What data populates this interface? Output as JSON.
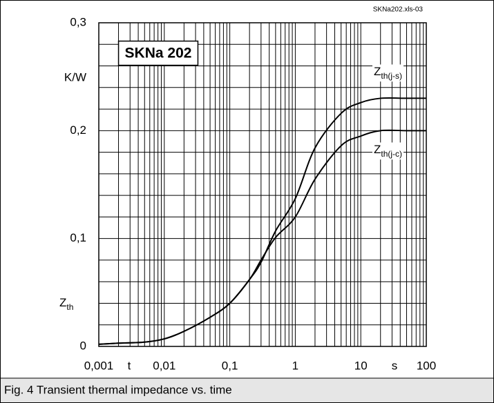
{
  "chart_data": {
    "type": "line",
    "title": "SKNa 202",
    "file_label": "SKNa202.xls-03",
    "caption": "Fig. 4 Transient thermal impedance vs. time",
    "x_label": "t",
    "x_unit": "s",
    "y_label": {
      "symbol": "Z",
      "subscript": "th"
    },
    "y_unit": "K/W",
    "x_log": true,
    "grid": true,
    "x": [
      0.001,
      0.002,
      0.005,
      0.01,
      0.02,
      0.05,
      0.1,
      0.2,
      0.3,
      0.5,
      1,
      2,
      5,
      10,
      20,
      50,
      100
    ],
    "series": [
      {
        "name": {
          "symbol": "Z",
          "subscript": "th(j-s)"
        },
        "color": "#000000",
        "values": [
          0.002,
          0.003,
          0.004,
          0.007,
          0.014,
          0.027,
          0.04,
          0.062,
          0.078,
          0.107,
          0.137,
          0.184,
          0.216,
          0.226,
          0.23,
          0.23,
          0.23
        ]
      },
      {
        "name": {
          "symbol": "Z",
          "subscript": "th(j-c)"
        },
        "color": "#000000",
        "values": [
          0.002,
          0.003,
          0.004,
          0.007,
          0.014,
          0.027,
          0.04,
          0.062,
          0.08,
          0.101,
          0.12,
          0.155,
          0.186,
          0.195,
          0.2,
          0.2,
          0.2
        ]
      }
    ],
    "xlim": [
      0.001,
      100
    ],
    "xticks": [
      {
        "value": 0.001,
        "label": "0,001"
      },
      {
        "value": 0.01,
        "label": "0,01"
      },
      {
        "value": 0.1,
        "label": "0,1"
      },
      1,
      10,
      100
    ],
    "ylim": [
      0,
      0.3
    ],
    "yticks": [
      0,
      {
        "value": 0.1,
        "label": "0,1"
      },
      {
        "value": 0.2,
        "label": "0,2"
      },
      {
        "value": 0.3,
        "label": "0,3"
      }
    ]
  }
}
